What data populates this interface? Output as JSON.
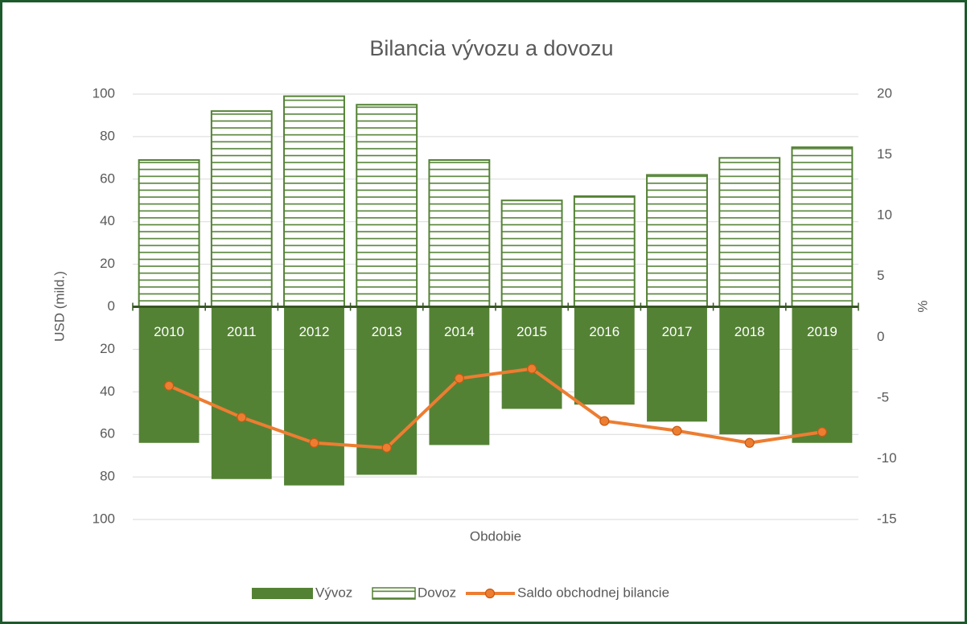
{
  "chart_data": {
    "type": "bar_line",
    "title": "Bilancia vývozu a dovozu",
    "x_label": "Obdobie",
    "y_label": "USD (mild.)",
    "y2_label": "%",
    "categories": [
      "2010",
      "2011",
      "2012",
      "2013",
      "2014",
      "2015",
      "2016",
      "2017",
      "2018",
      "2019"
    ],
    "series": [
      {
        "name": "Vývoz",
        "type": "bar",
        "color": "#548235",
        "values": [
          -64,
          -81,
          -84,
          -79,
          -65,
          -48,
          -46,
          -54,
          -60,
          -64
        ]
      },
      {
        "name": "Dovoz",
        "type": "bar",
        "pattern": "horizontal-stripes",
        "color": "#548235",
        "values": [
          69,
          92,
          99,
          95,
          69,
          50,
          52,
          62,
          70,
          75
        ]
      },
      {
        "name": "Saldo obchodnej bilancie",
        "type": "line",
        "axis": "y2",
        "color": "#ED7D31",
        "values": [
          -4.0,
          -6.6,
          -8.7,
          -9.1,
          -3.4,
          -2.6,
          -6.9,
          -7.7,
          -8.7,
          -7.8
        ]
      }
    ],
    "ylim": [
      -100,
      100
    ],
    "yticks": [
      {
        "value": -100,
        "label": "100"
      },
      {
        "value": -80,
        "label": "80"
      },
      {
        "value": -60,
        "label": "60"
      },
      {
        "value": -40,
        "label": "40"
      },
      {
        "value": -20,
        "label": "20"
      },
      0,
      20,
      40,
      60,
      80,
      100
    ],
    "y2lim": [
      -15,
      20
    ],
    "y2ticks": [
      -15,
      -10,
      -5,
      0,
      5,
      10,
      15,
      20
    ],
    "grid": true,
    "legend": "bottom"
  }
}
